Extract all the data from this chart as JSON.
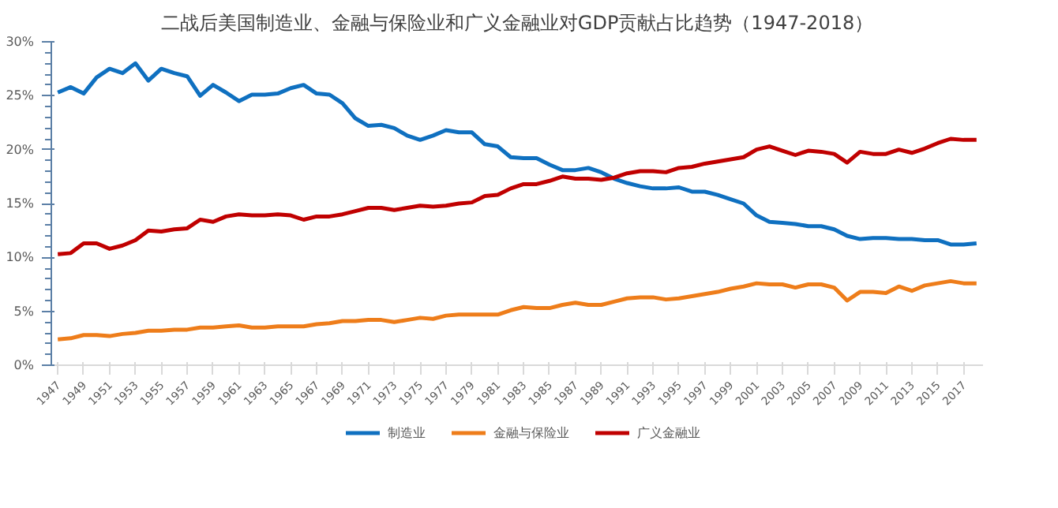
{
  "chart_data": {
    "type": "line",
    "title": "二战后美国制造业、金融与保险业和广义金融业对GDP贡献占比趋势（1947-2018）",
    "categories": [
      "1947",
      null,
      "1949",
      null,
      "1951",
      null,
      "1953",
      null,
      "1955",
      null,
      "1957",
      null,
      "1959",
      null,
      "1961",
      null,
      "1963",
      null,
      "1965",
      null,
      "1967",
      null,
      "1969",
      null,
      "1971",
      null,
      "1973",
      null,
      "1975",
      null,
      "1977",
      null,
      "1979",
      null,
      "1981",
      null,
      "1983",
      null,
      "1985",
      null,
      "1987",
      null,
      "1989",
      null,
      "1991",
      null,
      "1993",
      null,
      "1995",
      null,
      "1997",
      null,
      "1999",
      null,
      "2001",
      null,
      "2003",
      null,
      "2005",
      null,
      "2007",
      null,
      "2009",
      null,
      "2011",
      null,
      "2013",
      null,
      "2015",
      null,
      "2017",
      null
    ],
    "series": [
      {
        "name": "制造业",
        "color": "#0f70c0",
        "values": [
          25.3,
          25.8,
          25.2,
          26.7,
          27.5,
          27.1,
          28.0,
          26.4,
          27.5,
          27.1,
          26.8,
          25.0,
          26.0,
          25.3,
          24.5,
          25.1,
          25.1,
          25.2,
          25.7,
          26.0,
          25.2,
          25.1,
          24.3,
          22.9,
          22.2,
          22.3,
          22.0,
          21.3,
          20.9,
          21.3,
          21.8,
          21.6,
          21.6,
          20.5,
          20.3,
          19.3,
          19.2,
          19.2,
          18.6,
          18.1,
          18.1,
          18.3,
          17.9,
          17.3,
          16.9,
          16.6,
          16.4,
          16.4,
          16.5,
          16.1,
          16.1,
          15.8,
          15.4,
          15.0,
          13.9,
          13.3,
          13.2,
          13.1,
          12.9,
          12.9,
          12.6,
          12.0,
          11.7,
          11.8,
          11.8,
          11.7,
          11.7,
          11.6,
          11.6,
          11.2,
          11.2,
          11.3
        ]
      },
      {
        "name": "金融与保险业",
        "color": "#ee7d1a",
        "values": [
          2.4,
          2.5,
          2.8,
          2.8,
          2.7,
          2.9,
          3.0,
          3.2,
          3.2,
          3.3,
          3.3,
          3.5,
          3.5,
          3.6,
          3.7,
          3.5,
          3.5,
          3.6,
          3.6,
          3.6,
          3.8,
          3.9,
          4.1,
          4.1,
          4.2,
          4.2,
          4.0,
          4.2,
          4.4,
          4.3,
          4.6,
          4.7,
          4.7,
          4.7,
          4.7,
          5.1,
          5.4,
          5.3,
          5.3,
          5.6,
          5.8,
          5.6,
          5.6,
          5.9,
          6.2,
          6.3,
          6.3,
          6.1,
          6.2,
          6.4,
          6.6,
          6.8,
          7.1,
          7.3,
          7.6,
          7.5,
          7.5,
          7.2,
          7.5,
          7.5,
          7.2,
          6.0,
          6.8,
          6.8,
          6.7,
          7.3,
          6.9,
          7.4,
          7.6,
          7.8,
          7.6,
          7.6
        ]
      },
      {
        "name": "广义金融业",
        "color": "#c00000",
        "values": [
          10.3,
          10.4,
          11.3,
          11.3,
          10.8,
          11.1,
          11.6,
          12.5,
          12.4,
          12.6,
          12.7,
          13.5,
          13.3,
          13.8,
          14.0,
          13.9,
          13.9,
          14.0,
          13.9,
          13.5,
          13.8,
          13.8,
          14.0,
          14.3,
          14.6,
          14.6,
          14.4,
          14.6,
          14.8,
          14.7,
          14.8,
          15.0,
          15.1,
          15.7,
          15.8,
          16.4,
          16.8,
          16.8,
          17.1,
          17.5,
          17.3,
          17.3,
          17.2,
          17.4,
          17.8,
          18.0,
          18.0,
          17.9,
          18.3,
          18.4,
          18.7,
          18.9,
          19.1,
          19.3,
          20.0,
          20.3,
          19.9,
          19.5,
          19.9,
          19.8,
          19.6,
          18.8,
          19.8,
          19.6,
          19.6,
          20.0,
          19.7,
          20.1,
          20.6,
          21.0,
          20.9,
          20.9
        ]
      }
    ],
    "ylim": [
      0,
      30
    ],
    "yticks": [
      {
        "value": 0,
        "label": "0%"
      },
      {
        "value": 5,
        "label": "5%"
      },
      {
        "value": 10,
        "label": "10%"
      },
      {
        "value": 15,
        "label": "15%"
      },
      {
        "value": 20,
        "label": "20%"
      },
      {
        "value": 25,
        "label": "25%"
      },
      {
        "value": 30,
        "label": "30%"
      }
    ],
    "grid": false,
    "legend": "bottom",
    "marker": "none",
    "line_style": "solid"
  }
}
